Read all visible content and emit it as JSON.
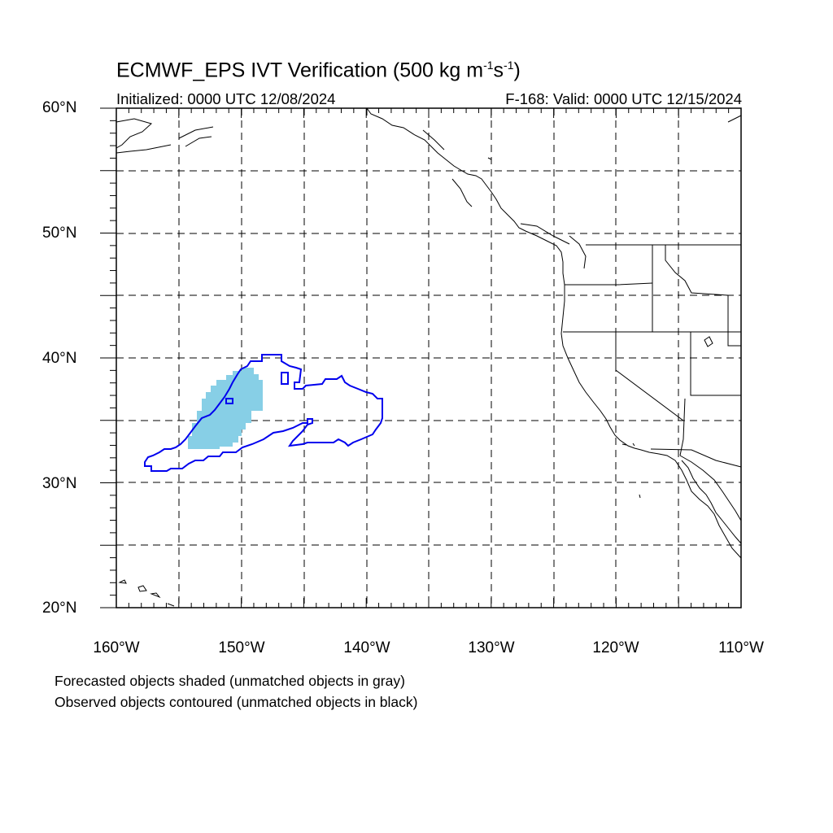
{
  "title_main": "ECMWF_EPS IVT Verification (500 kg m",
  "title_sup1": "-1",
  "title_mid": "s",
  "title_sup2": "-1",
  "title_end": ")",
  "subtitle_left": "Initialized: 0000 UTC 12/08/2024",
  "subtitle_right": "F-168: Valid: 0000 UTC 12/15/2024",
  "lat_labels": [
    "60°N",
    "50°N",
    "40°N",
    "30°N",
    "20°N"
  ],
  "lon_labels": [
    "160°W",
    "150°W",
    "140°W",
    "130°W",
    "120°W",
    "110°W"
  ],
  "legend_notes": [
    "Forecasted objects shaded (unmatched objects in gray)",
    "Observed objects contoured (unmatched objects in black)"
  ],
  "map": {
    "lat_range": [
      20,
      60
    ],
    "lon_range": [
      -160,
      -110
    ],
    "gridlines": "dashed every 5 degrees",
    "forecast_object_color": "#87cfe6",
    "observed_object_color": "#0000ee",
    "coastline_color": "#000000"
  }
}
